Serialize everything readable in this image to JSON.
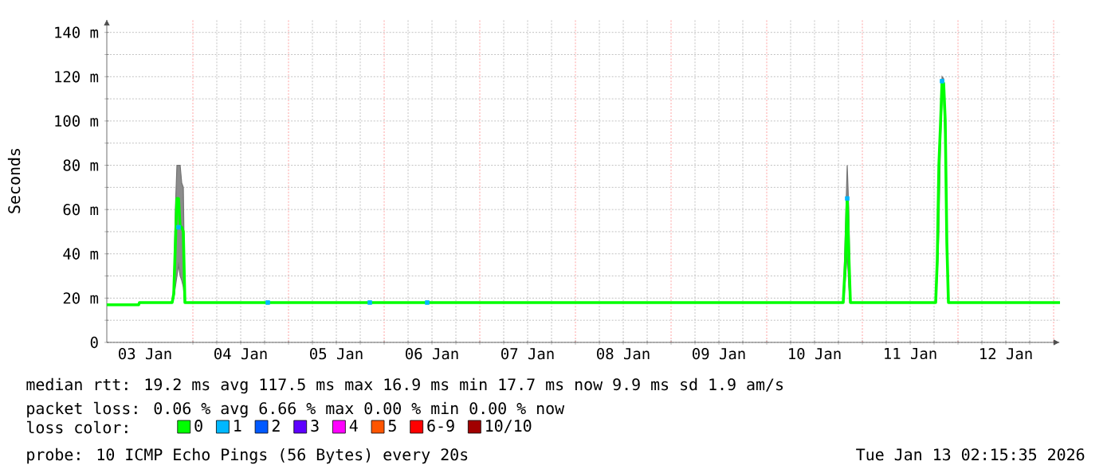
{
  "chart_data": {
    "type": "line",
    "ylabel": "Seconds",
    "x": [
      "2026-01-03T02:24",
      "2026-01-03T10:24",
      "2026-01-03T10:36",
      "2026-01-03T18:48",
      "2026-01-03T19:12",
      "2026-01-03T19:36",
      "2026-01-03T20:00",
      "2026-01-03T20:24",
      "2026-01-03T20:48",
      "2026-01-03T21:12",
      "2026-01-03T21:36",
      "2026-01-03T22:00",
      "2026-01-10T19:12",
      "2026-01-10T19:24",
      "2026-01-10T19:48",
      "2026-01-10T20:12",
      "2026-01-10T20:36",
      "2026-01-10T21:00",
      "2026-01-11T18:24",
      "2026-01-11T18:48",
      "2026-01-11T19:12",
      "2026-01-11T19:36",
      "2026-01-11T20:00",
      "2026-01-11T20:24",
      "2026-01-11T20:48",
      "2026-01-11T21:12",
      "2026-01-11T21:36",
      "2026-01-13T01:36"
    ],
    "series": [
      {
        "name": "0",
        "color": "#00ff00",
        "values": [
          17,
          17,
          18,
          18,
          22,
          44,
          65,
          65,
          52,
          52,
          50,
          18,
          18,
          25,
          38,
          65,
          40,
          18,
          18,
          37,
          80,
          98,
          118,
          117,
          100,
          45,
          18,
          18
        ],
        "lower": [
          17,
          17,
          18,
          18,
          20,
          25,
          30,
          35,
          30,
          28,
          25,
          18,
          18,
          20,
          30,
          40,
          25,
          18,
          18,
          30,
          50,
          90,
          110,
          110,
          90,
          40,
          18,
          18
        ],
        "upper": [
          17,
          17,
          18,
          18,
          25,
          60,
          80,
          80,
          80,
          72,
          70,
          18,
          18,
          30,
          55,
          80,
          60,
          18,
          18,
          40,
          85,
          100,
          120,
          119,
          102,
          50,
          18,
          18
        ]
      },
      {
        "name": "1",
        "type": "scatter",
        "marker": "square",
        "color": "#00b8ff",
        "x": [
          "2026-01-03T20:24",
          "2026-01-04T18:48",
          "2026-01-05T20:24",
          "2026-01-06T10:48",
          "2026-01-10T20:12",
          "2026-01-11T20:00"
        ],
        "values": [
          52,
          18,
          18,
          18,
          65,
          118
        ]
      },
      {
        "name": "2",
        "type": "scatter",
        "color": "#0059ff",
        "values": [
          null,
          null,
          null,
          null,
          null,
          null,
          null,
          null,
          null,
          null,
          null,
          null,
          null,
          null,
          null,
          null,
          null,
          null,
          null,
          null,
          null,
          null,
          null,
          null,
          null,
          null,
          null,
          null
        ]
      },
      {
        "name": "3",
        "type": "scatter",
        "color": "#5e00ff",
        "values": [
          null,
          null,
          null,
          null,
          null,
          null,
          null,
          null,
          null,
          null,
          null,
          null,
          null,
          null,
          null,
          null,
          null,
          null,
          null,
          null,
          null,
          null,
          null,
          null,
          null,
          null,
          null,
          null
        ]
      },
      {
        "name": "4",
        "type": "scatter",
        "color": "#ff00fe",
        "values": [
          null,
          null,
          null,
          null,
          null,
          null,
          null,
          null,
          null,
          null,
          null,
          null,
          null,
          null,
          null,
          null,
          null,
          null,
          null,
          null,
          null,
          null,
          null,
          null,
          null,
          null,
          null,
          null
        ]
      },
      {
        "name": "5",
        "type": "scatter",
        "color": "#ff5500",
        "values": [
          null,
          null,
          null,
          null,
          null,
          null,
          null,
          null,
          null,
          null,
          null,
          null,
          null,
          null,
          null,
          null,
          null,
          null,
          null,
          null,
          null,
          null,
          null,
          null,
          null,
          null,
          null,
          null
        ]
      },
      {
        "name": "6-9",
        "type": "scatter",
        "color": "#ff0000",
        "values": [
          null,
          null,
          null,
          null,
          null,
          null,
          null,
          null,
          null,
          null,
          null,
          null,
          null,
          null,
          null,
          null,
          null,
          null,
          null,
          null,
          null,
          null,
          null,
          null,
          null,
          null,
          null,
          null
        ]
      },
      {
        "name": "10/10",
        "type": "scatter",
        "color": "#a10000",
        "values": [
          null,
          null,
          null,
          null,
          null,
          null,
          null,
          null,
          null,
          null,
          null,
          null,
          null,
          null,
          null,
          null,
          null,
          null,
          null,
          null,
          null,
          null,
          null,
          null,
          null,
          null,
          null,
          null
        ]
      }
    ],
    "legend": "bottom",
    "legend_title": "loss color:",
    "grid": true,
    "xlim": [
      "2026-01-03T02:24",
      "2026-01-13T01:36"
    ],
    "xticks": [
      {
        "value": "2026-01-03T12:00",
        "label": "03 Jan"
      },
      {
        "value": "2026-01-04T12:00",
        "label": "04 Jan"
      },
      {
        "value": "2026-01-05T12:00",
        "label": "05 Jan"
      },
      {
        "value": "2026-01-06T12:00",
        "label": "06 Jan"
      },
      {
        "value": "2026-01-07T12:00",
        "label": "07 Jan"
      },
      {
        "value": "2026-01-08T12:00",
        "label": "08 Jan"
      },
      {
        "value": "2026-01-09T12:00",
        "label": "09 Jan"
      },
      {
        "value": "2026-01-10T12:00",
        "label": "10 Jan"
      },
      {
        "value": "2026-01-11T12:00",
        "label": "11 Jan"
      },
      {
        "value": "2026-01-12T12:00",
        "label": "12 Jan"
      },
      {
        "value": "2026-01-04T00:00",
        "label": null
      },
      {
        "value": "2026-01-05T00:00",
        "label": null
      },
      {
        "value": "2026-01-06T00:00",
        "label": null
      },
      {
        "value": "2026-01-07T00:00",
        "label": null
      },
      {
        "value": "2026-01-08T00:00",
        "label": null
      },
      {
        "value": "2026-01-09T00:00",
        "label": null
      },
      {
        "value": "2026-01-10T00:00",
        "label": null
      },
      {
        "value": "2026-01-11T00:00",
        "label": null
      },
      {
        "value": "2026-01-12T00:00",
        "label": null
      },
      {
        "value": "2026-01-13T00:00",
        "label": null
      }
    ],
    "ylim": [
      0,
      146
    ],
    "yticks": [
      0,
      {
        "value": 20,
        "label": "20 m"
      },
      {
        "value": 40,
        "label": "40 m"
      },
      {
        "value": 60,
        "label": "60 m"
      },
      {
        "value": 80,
        "label": "80 m"
      },
      {
        "value": 100,
        "label": "100 m"
      },
      {
        "value": 120,
        "label": "120 m"
      },
      {
        "value": 140,
        "label": "140 m"
      }
    ],
    "annotations": [
      "median rtt:  19.2 ms avg  117.5 ms max  16.9 ms min  17.7 ms now  9.9 ms sd  1.9   am/s",
      "packet loss: 0.06 % avg  6.66 % max  0.00 % min  0.00 % now",
      "probe:       10 ICMP Echo Pings (56 Bytes) every 20s",
      "Tue Jan 13 02:15:35 2026"
    ]
  }
}
